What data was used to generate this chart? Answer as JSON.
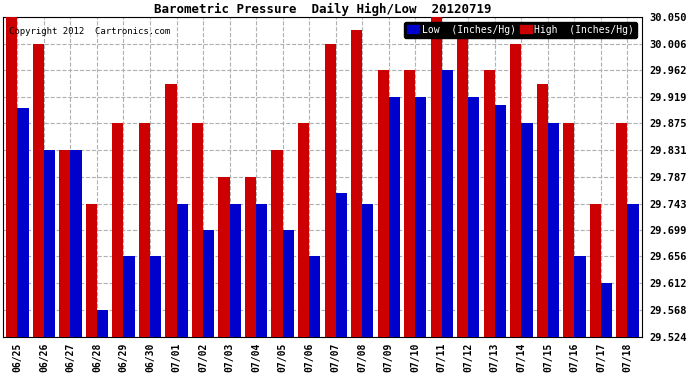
{
  "title": "Barometric Pressure  Daily High/Low  20120719",
  "copyright": "Copyright 2012  Cartronics.com",
  "dates": [
    "06/25",
    "06/26",
    "06/27",
    "06/28",
    "06/29",
    "06/30",
    "07/01",
    "07/02",
    "07/03",
    "07/04",
    "07/05",
    "07/06",
    "07/07",
    "07/08",
    "07/09",
    "07/10",
    "07/11",
    "07/12",
    "07/13",
    "07/14",
    "07/15",
    "07/16",
    "07/17",
    "07/18"
  ],
  "low": [
    29.9,
    29.831,
    29.831,
    29.568,
    29.656,
    29.656,
    29.743,
    29.699,
    29.743,
    29.743,
    29.699,
    29.656,
    29.76,
    29.743,
    29.919,
    29.919,
    29.962,
    29.919,
    29.906,
    29.875,
    29.875,
    29.656,
    29.612,
    29.743
  ],
  "high": [
    30.05,
    30.006,
    29.831,
    29.743,
    29.875,
    29.875,
    29.94,
    29.875,
    29.787,
    29.787,
    29.831,
    29.875,
    30.006,
    30.028,
    29.962,
    29.962,
    30.05,
    30.028,
    29.962,
    30.006,
    29.94,
    29.875,
    29.743,
    29.875
  ],
  "ylim_min": 29.524,
  "ylim_max": 30.05,
  "yticks": [
    29.524,
    29.568,
    29.612,
    29.656,
    29.699,
    29.743,
    29.787,
    29.831,
    29.875,
    29.919,
    29.962,
    30.006,
    30.05
  ],
  "low_color": "#0000cc",
  "high_color": "#cc0000",
  "bg_color": "#ffffff",
  "grid_color": "#b0b0b0",
  "bar_width": 0.42,
  "legend_low_label": "Low  (Inches/Hg)",
  "legend_high_label": "High  (Inches/Hg)"
}
